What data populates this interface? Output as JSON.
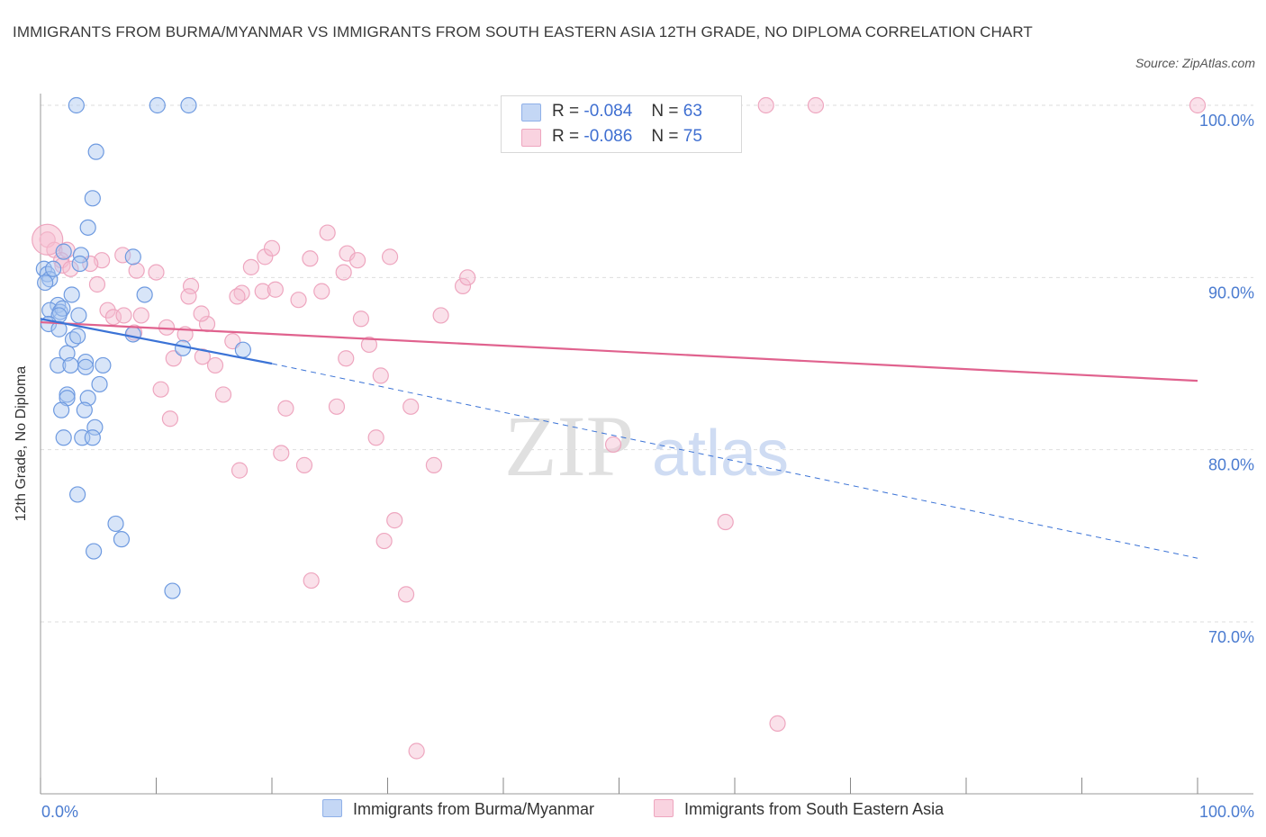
{
  "title": "IMMIGRANTS FROM BURMA/MYANMAR VS IMMIGRANTS FROM SOUTH EASTERN ASIA 12TH GRADE, NO DIPLOMA CORRELATION CHART",
  "source": "Source: ZipAtlas.com",
  "watermark": {
    "zip": "ZIP",
    "atlas": "atlas"
  },
  "colors": {
    "blue": "#3b73d6",
    "blue_fill": "#a9c5f0",
    "pink": "#e0628e",
    "pink_fill": "#f5bdd0",
    "tick_text": "#4a7bd0",
    "grid": "#dcdcdc"
  },
  "legend_top": [
    {
      "r_label": "R =",
      "r_value": "-0.084",
      "n_label": "N =",
      "n_value": "63",
      "color": "#a9c5f0"
    },
    {
      "r_label": "R =",
      "r_value": "-0.086",
      "n_label": "N =",
      "n_value": "75",
      "color": "#f5bdd0"
    }
  ],
  "legend_bottom": [
    "Immigrants from Burma/Myanmar",
    "Immigrants from South Eastern Asia"
  ],
  "chart_data": {
    "type": "scatter",
    "title": "IMMIGRANTS FROM BURMA/MYANMAR VS IMMIGRANTS FROM SOUTH EASTERN ASIA 12TH GRADE, NO DIPLOMA CORRELATION CHART",
    "xlabel": "",
    "ylabel": "12th Grade, No Diploma",
    "xlim": [
      0,
      100
    ],
    "ylim": [
      61,
      101
    ],
    "x_tick_labels": [
      "0.0%",
      "100.0%"
    ],
    "y_ticks": [
      70,
      80,
      90,
      100
    ],
    "y_tick_labels": [
      "70.0%",
      "80.0%",
      "90.0%",
      "100.0%"
    ],
    "grid": true,
    "legend_placement": "bottom-center",
    "series": [
      {
        "name": "Immigrants from Burma/Myanmar",
        "color": "#3b73d6",
        "r": -0.084,
        "n": 63,
        "trend": {
          "x0": 0,
          "y0": 87.6,
          "x1": 20,
          "y1": 85.0,
          "dashed_to_x": 100,
          "dashed_to_y": 73.7
        },
        "points": [
          [
            3.1,
            100
          ],
          [
            10.1,
            100
          ],
          [
            12.8,
            100
          ],
          [
            4.8,
            97.3
          ],
          [
            4.5,
            94.6
          ],
          [
            4.1,
            92.9
          ],
          [
            3.5,
            91.3
          ],
          [
            8.0,
            91.2
          ],
          [
            2.0,
            91.5
          ],
          [
            0.3,
            90.5
          ],
          [
            0.6,
            90.2
          ],
          [
            0.8,
            89.9
          ],
          [
            1.1,
            90.5
          ],
          [
            0.4,
            89.7
          ],
          [
            3.4,
            90.8
          ],
          [
            9.0,
            89.0
          ],
          [
            2.7,
            89.0
          ],
          [
            1.5,
            88.4
          ],
          [
            0.8,
            88.1
          ],
          [
            1.7,
            88.0
          ],
          [
            1.9,
            88.2
          ],
          [
            1.6,
            87.8
          ],
          [
            3.3,
            87.8
          ],
          [
            0.7,
            87.3
          ],
          [
            1.6,
            87.0
          ],
          [
            2.8,
            86.4
          ],
          [
            3.2,
            86.6
          ],
          [
            8.0,
            86.7
          ],
          [
            12.3,
            85.9
          ],
          [
            17.5,
            85.8
          ],
          [
            2.3,
            85.6
          ],
          [
            1.5,
            84.9
          ],
          [
            2.6,
            84.9
          ],
          [
            3.9,
            85.1
          ],
          [
            5.4,
            84.9
          ],
          [
            3.9,
            84.8
          ],
          [
            5.1,
            83.8
          ],
          [
            2.3,
            83.2
          ],
          [
            2.3,
            83.0
          ],
          [
            4.1,
            83.0
          ],
          [
            1.8,
            82.3
          ],
          [
            3.8,
            82.3
          ],
          [
            4.7,
            81.3
          ],
          [
            2.0,
            80.7
          ],
          [
            3.6,
            80.7
          ],
          [
            4.5,
            80.7
          ],
          [
            3.2,
            77.4
          ],
          [
            6.5,
            75.7
          ],
          [
            7.0,
            74.8
          ],
          [
            4.6,
            74.1
          ],
          [
            11.4,
            71.8
          ]
        ]
      },
      {
        "name": "Immigrants from South Eastern Asia",
        "color": "#e0628e",
        "r": -0.086,
        "n": 75,
        "trend": {
          "x0": 0,
          "y0": 87.4,
          "x1": 100,
          "y1": 84.0
        },
        "points": [
          [
            0.6,
            92.2
          ],
          [
            1.2,
            91.6
          ],
          [
            2.3,
            91.6
          ],
          [
            1.8,
            91.0
          ],
          [
            7.1,
            91.3
          ],
          [
            5.3,
            91.0
          ],
          [
            4.3,
            90.8
          ],
          [
            1.9,
            90.7
          ],
          [
            2.6,
            90.5
          ],
          [
            8.3,
            90.4
          ],
          [
            10.0,
            90.3
          ],
          [
            19.4,
            91.2
          ],
          [
            20.0,
            91.7
          ],
          [
            23.3,
            91.1
          ],
          [
            24.8,
            92.6
          ],
          [
            26.2,
            90.3
          ],
          [
            26.5,
            91.4
          ],
          [
            27.4,
            91.0
          ],
          [
            30.2,
            91.2
          ],
          [
            18.2,
            90.6
          ],
          [
            36.5,
            89.5
          ],
          [
            36.9,
            90.0
          ],
          [
            4.9,
            89.6
          ],
          [
            13.0,
            89.5
          ],
          [
            17.4,
            89.1
          ],
          [
            12.8,
            88.9
          ],
          [
            17.0,
            88.9
          ],
          [
            19.2,
            89.2
          ],
          [
            20.3,
            89.3
          ],
          [
            22.3,
            88.7
          ],
          [
            24.3,
            89.2
          ],
          [
            5.8,
            88.1
          ],
          [
            6.3,
            87.7
          ],
          [
            7.2,
            87.8
          ],
          [
            8.7,
            87.8
          ],
          [
            10.9,
            87.1
          ],
          [
            12.5,
            86.7
          ],
          [
            14.4,
            87.3
          ],
          [
            13.9,
            87.9
          ],
          [
            27.7,
            87.6
          ],
          [
            34.6,
            87.8
          ],
          [
            8.1,
            86.8
          ],
          [
            16.6,
            86.3
          ],
          [
            28.4,
            86.1
          ],
          [
            11.5,
            85.3
          ],
          [
            14.0,
            85.4
          ],
          [
            15.1,
            84.9
          ],
          [
            26.4,
            85.3
          ],
          [
            29.4,
            84.3
          ],
          [
            10.4,
            83.5
          ],
          [
            15.8,
            83.2
          ],
          [
            21.2,
            82.4
          ],
          [
            25.6,
            82.5
          ],
          [
            32.0,
            82.5
          ],
          [
            11.2,
            81.8
          ],
          [
            29.0,
            80.7
          ],
          [
            49.5,
            80.3
          ],
          [
            20.8,
            79.8
          ],
          [
            17.2,
            78.8
          ],
          [
            22.8,
            79.1
          ],
          [
            34.0,
            79.1
          ],
          [
            29.7,
            74.7
          ],
          [
            30.6,
            75.9
          ],
          [
            59.2,
            75.8
          ],
          [
            23.4,
            72.4
          ],
          [
            31.6,
            71.6
          ],
          [
            63.7,
            64.1
          ],
          [
            32.5,
            62.5
          ],
          [
            62.7,
            100
          ],
          [
            67.0,
            100
          ],
          [
            100,
            100
          ]
        ]
      }
    ]
  }
}
